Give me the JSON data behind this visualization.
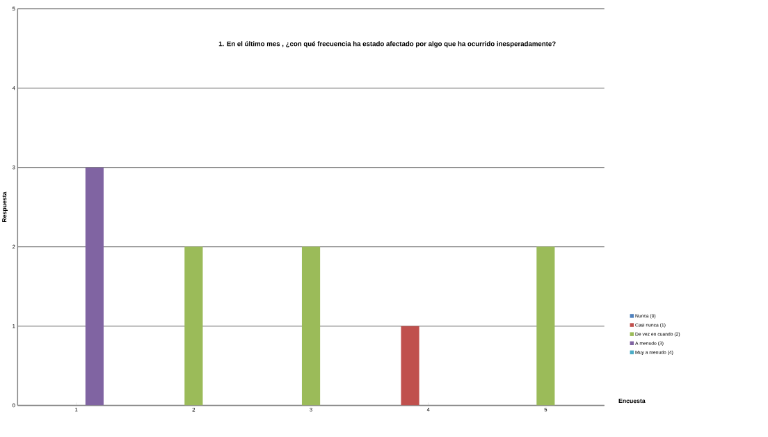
{
  "chart_data": {
    "type": "bar",
    "title": "1. En el último mes , ¿con qué frecuencia ha estado afectado por algo que ha ocurrido inesperadamente?",
    "xlabel": "Encuesta",
    "ylabel": "Respuesta",
    "categories": [
      "1",
      "2",
      "3",
      "4",
      "5"
    ],
    "series": [
      {
        "name": "Nunca (0)",
        "color": "#4f81bd",
        "values": [
          null,
          null,
          null,
          null,
          null
        ]
      },
      {
        "name": "Casi nunca (1)",
        "color": "#c0504d",
        "values": [
          null,
          null,
          null,
          1,
          null
        ]
      },
      {
        "name": "De vez en cuando (2)",
        "color": "#9bbb59",
        "values": [
          null,
          2,
          2,
          null,
          2
        ]
      },
      {
        "name": "A menudo (3)",
        "color": "#8064a2",
        "values": [
          3,
          null,
          null,
          null,
          null
        ]
      },
      {
        "name": "Muy a menudo (4)",
        "color": "#4bacc6",
        "values": [
          null,
          null,
          null,
          null,
          null
        ]
      }
    ],
    "ylim": [
      0,
      5
    ],
    "yticks": [
      0,
      1,
      2,
      3,
      4,
      5
    ],
    "grid": "y",
    "legend": "right"
  }
}
